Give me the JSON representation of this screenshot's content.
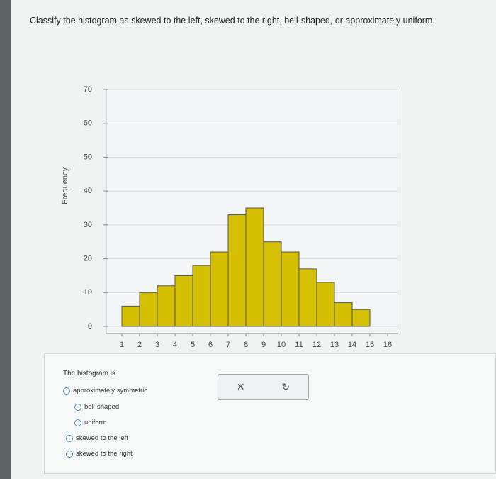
{
  "question": "Classify the histogram as skewed to the left, skewed to the right, bell-shaped, or approximately uniform.",
  "chart_data": {
    "type": "histogram",
    "y_label": "Frequency",
    "bins": [
      1,
      2,
      3,
      4,
      5,
      6,
      7,
      8,
      9,
      10,
      11,
      12,
      13,
      14,
      15
    ],
    "values": [
      6,
      10,
      12,
      15,
      18,
      22,
      33,
      35,
      25,
      22,
      17,
      13,
      7,
      5
    ],
    "color": "#d4c000",
    "xlim": [
      0.5,
      16.5
    ],
    "xticks": [
      1,
      2,
      3,
      4,
      5,
      6,
      7,
      8,
      9,
      10,
      11,
      12,
      13,
      14,
      15,
      16
    ],
    "ylim": [
      0,
      70
    ],
    "yticks": [
      0,
      10,
      20,
      30,
      40,
      50,
      60,
      70
    ],
    "grid": true
  },
  "answer": {
    "intro": "The histogram is",
    "choices": [
      "approximately symmetric",
      "bell-shaped",
      "uniform",
      "skewed to the left",
      "skewed to the right"
    ]
  }
}
